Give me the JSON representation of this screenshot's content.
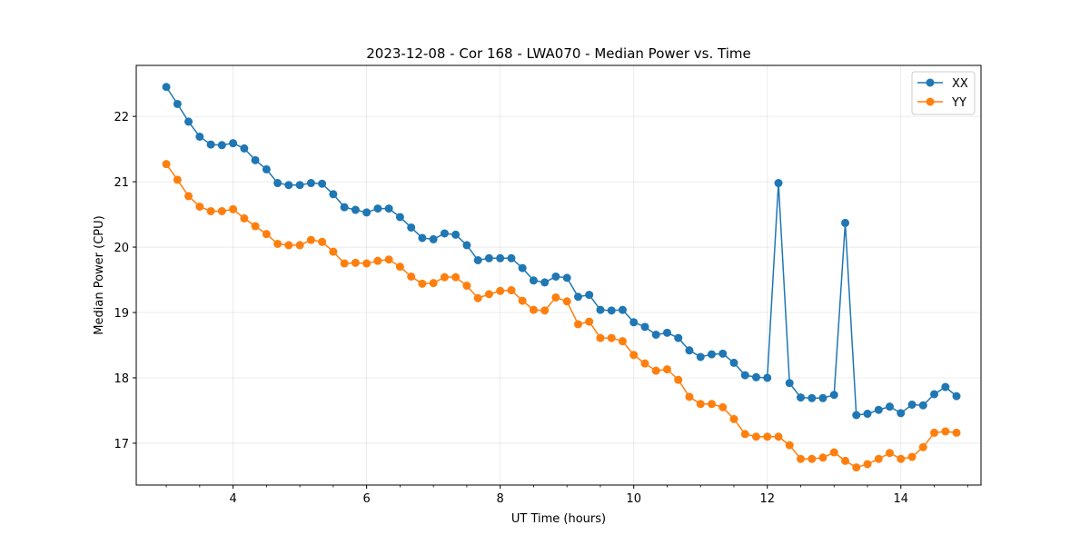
{
  "chart_data": {
    "type": "line",
    "title": "2023-12-08 - Cor 168 - LWA070 - Median Power vs. Time",
    "xlabel": "UT Time (hours)",
    "ylabel": "Median Power (CPU)",
    "xlim": [
      2.55,
      15.2
    ],
    "ylim": [
      16.36,
      22.78
    ],
    "xticks": [
      4,
      6,
      8,
      10,
      12,
      14
    ],
    "xtick_labels": [
      "4",
      "6",
      "8",
      "10",
      "12",
      "14"
    ],
    "yticks": [
      17,
      18,
      19,
      20,
      21,
      22
    ],
    "ytick_labels": [
      "17",
      "18",
      "19",
      "20",
      "21",
      "22"
    ],
    "grid": true,
    "legend_position": "top-right",
    "x": [
      3.0,
      3.167,
      3.333,
      3.5,
      3.667,
      3.833,
      4.0,
      4.167,
      4.333,
      4.5,
      4.667,
      4.833,
      5.0,
      5.167,
      5.333,
      5.5,
      5.667,
      5.833,
      6.0,
      6.167,
      6.333,
      6.5,
      6.667,
      6.833,
      7.0,
      7.167,
      7.333,
      7.5,
      7.667,
      7.833,
      8.0,
      8.167,
      8.333,
      8.5,
      8.667,
      8.833,
      9.0,
      9.167,
      9.333,
      9.5,
      9.667,
      9.833,
      10.0,
      10.167,
      10.333,
      10.5,
      10.667,
      10.833,
      11.0,
      11.167,
      11.333,
      11.5,
      11.667,
      11.833,
      12.0,
      12.167,
      12.333,
      12.5,
      12.667,
      12.833,
      13.0,
      13.167,
      13.333,
      13.5,
      13.667,
      13.833,
      14.0,
      14.167,
      14.333,
      14.5,
      14.667,
      14.833
    ],
    "series": [
      {
        "name": "XX",
        "color": "#1f77b4",
        "values": [
          22.45,
          22.19,
          21.92,
          21.69,
          21.57,
          21.56,
          21.59,
          21.51,
          21.33,
          21.19,
          20.98,
          20.95,
          20.95,
          20.98,
          20.97,
          20.81,
          20.61,
          20.57,
          20.53,
          20.59,
          20.59,
          20.46,
          20.3,
          20.14,
          20.12,
          20.21,
          20.19,
          20.03,
          19.8,
          19.83,
          19.83,
          19.83,
          19.68,
          19.49,
          19.46,
          19.55,
          19.53,
          19.24,
          19.27,
          19.04,
          19.03,
          19.04,
          18.85,
          18.78,
          18.66,
          18.69,
          18.61,
          18.42,
          18.32,
          18.36,
          18.37,
          18.23,
          18.04,
          18.01,
          18.0,
          20.98,
          17.92,
          17.7,
          17.69,
          17.69,
          17.74,
          20.37,
          17.43,
          17.45,
          17.51,
          17.56,
          17.46,
          17.59,
          17.58,
          17.75,
          17.86,
          17.72
        ]
      },
      {
        "name": "YY",
        "color": "#ff7f0e",
        "values": [
          21.27,
          21.03,
          20.78,
          20.62,
          20.55,
          20.55,
          20.58,
          20.44,
          20.32,
          20.2,
          20.05,
          20.03,
          20.03,
          20.11,
          20.08,
          19.93,
          19.75,
          19.76,
          19.75,
          19.79,
          19.81,
          19.7,
          19.55,
          19.44,
          19.45,
          19.54,
          19.54,
          19.41,
          19.22,
          19.28,
          19.33,
          19.34,
          19.18,
          19.04,
          19.03,
          19.23,
          19.17,
          18.82,
          18.86,
          18.61,
          18.61,
          18.56,
          18.35,
          18.22,
          18.11,
          18.13,
          17.97,
          17.71,
          17.6,
          17.6,
          17.55,
          17.37,
          17.14,
          17.1,
          17.1,
          17.1,
          16.97,
          16.76,
          16.76,
          16.78,
          16.86,
          16.73,
          16.63,
          16.68,
          16.76,
          16.85,
          16.76,
          16.79,
          16.94,
          17.16,
          17.18,
          17.16
        ]
      }
    ]
  }
}
